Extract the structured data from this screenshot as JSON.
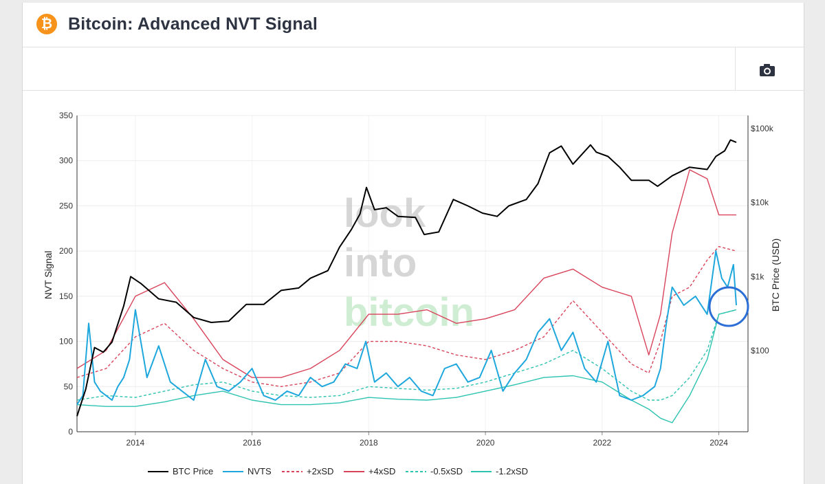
{
  "page": {
    "title": "Bitcoin: Advanced NVT Signal"
  },
  "colors": {
    "brand": "#f7931a",
    "btc_price": "#000000",
    "nvts": "#1ea7dd",
    "plus2sd": "#d9435a",
    "plus4sd": "#d9435a",
    "minus05sd": "#2cc3b0",
    "minus12sd": "#2cc3b0",
    "annotation_circle": "#2b6fd6"
  },
  "watermark": [
    "look",
    "into",
    "bitcoin"
  ],
  "chart_data": {
    "type": "line",
    "ylabel_left": "NVT Signal",
    "ylabel_right": "BTC Price (USD)",
    "xlabel": "",
    "ylim_left": [
      0,
      350
    ],
    "yticks_left": [
      0,
      50,
      100,
      150,
      200,
      250,
      300,
      350
    ],
    "right_axis_scale": "log",
    "yticks_right": [
      "$100",
      "$1k",
      "$10k",
      "$100k"
    ],
    "xticks": [
      "2014",
      "2016",
      "2018",
      "2020",
      "2022",
      "2024"
    ],
    "x_range": [
      "2013-01",
      "2024-05"
    ],
    "grid": true,
    "legend_position": "bottom",
    "series": [
      {
        "name": "BTC Price",
        "axis": "right",
        "style": "solid",
        "x": [
          2013.0,
          2013.15,
          2013.3,
          2013.45,
          2013.6,
          2013.8,
          2013.92,
          2014.1,
          2014.4,
          2014.7,
          2015.0,
          2015.3,
          2015.6,
          2015.9,
          2016.2,
          2016.5,
          2016.8,
          2017.0,
          2017.3,
          2017.5,
          2017.7,
          2017.85,
          2017.96,
          2018.1,
          2018.3,
          2018.5,
          2018.8,
          2018.95,
          2019.2,
          2019.45,
          2019.7,
          2019.95,
          2020.2,
          2020.4,
          2020.7,
          2020.9,
          2021.1,
          2021.3,
          2021.5,
          2021.8,
          2021.9,
          2022.1,
          2022.3,
          2022.5,
          2022.8,
          2022.95,
          2023.2,
          2023.5,
          2023.8,
          2023.95,
          2024.1,
          2024.2,
          2024.3
        ],
        "values": [
          13,
          30,
          110,
          95,
          130,
          400,
          1000,
          800,
          500,
          450,
          280,
          240,
          250,
          420,
          420,
          650,
          700,
          950,
          1200,
          2500,
          4300,
          7000,
          16000,
          8000,
          8500,
          6500,
          6300,
          3700,
          4000,
          11000,
          9000,
          7200,
          6500,
          9000,
          11000,
          18000,
          47000,
          58000,
          33000,
          60000,
          48000,
          42000,
          30000,
          20000,
          20000,
          16600,
          23000,
          30000,
          28000,
          42000,
          50000,
          70000,
          65000
        ]
      },
      {
        "name": "NVTS",
        "axis": "left",
        "style": "solid",
        "x": [
          2013.0,
          2013.1,
          2013.2,
          2013.3,
          2013.4,
          2013.5,
          2013.6,
          2013.7,
          2013.8,
          2013.9,
          2014.0,
          2014.2,
          2014.4,
          2014.6,
          2014.8,
          2015.0,
          2015.2,
          2015.4,
          2015.6,
          2015.8,
          2016.0,
          2016.2,
          2016.4,
          2016.6,
          2016.8,
          2017.0,
          2017.2,
          2017.4,
          2017.6,
          2017.8,
          2017.95,
          2018.1,
          2018.3,
          2018.5,
          2018.7,
          2018.9,
          2019.1,
          2019.3,
          2019.5,
          2019.7,
          2019.9,
          2020.1,
          2020.3,
          2020.5,
          2020.7,
          2020.9,
          2021.1,
          2021.3,
          2021.5,
          2021.7,
          2021.9,
          2022.1,
          2022.3,
          2022.5,
          2022.7,
          2022.9,
          2023.0,
          2023.1,
          2023.2,
          2023.4,
          2023.6,
          2023.8,
          2023.95,
          2024.05,
          2024.15,
          2024.25,
          2024.3
        ],
        "values": [
          30,
          40,
          120,
          55,
          45,
          40,
          35,
          50,
          60,
          80,
          135,
          60,
          95,
          55,
          45,
          35,
          80,
          50,
          45,
          55,
          70,
          40,
          35,
          45,
          40,
          60,
          50,
          55,
          75,
          70,
          100,
          55,
          65,
          50,
          60,
          45,
          40,
          70,
          75,
          55,
          60,
          90,
          45,
          65,
          80,
          110,
          125,
          90,
          110,
          70,
          55,
          100,
          40,
          35,
          40,
          50,
          70,
          120,
          160,
          140,
          150,
          130,
          200,
          170,
          160,
          185,
          140
        ]
      },
      {
        "name": "+2xSD",
        "axis": "left",
        "style": "dashed",
        "x": [
          2013.0,
          2013.5,
          2014.0,
          2014.5,
          2015.0,
          2015.5,
          2016.0,
          2016.5,
          2017.0,
          2017.5,
          2018.0,
          2018.5,
          2019.0,
          2019.5,
          2020.0,
          2020.5,
          2021.0,
          2021.5,
          2022.0,
          2022.5,
          2022.8,
          2023.0,
          2023.2,
          2023.5,
          2023.8,
          2024.0,
          2024.3
        ],
        "values": [
          60,
          70,
          105,
          120,
          90,
          70,
          55,
          50,
          55,
          65,
          100,
          100,
          95,
          85,
          80,
          90,
          105,
          145,
          110,
          75,
          65,
          100,
          150,
          160,
          190,
          205,
          200
        ]
      },
      {
        "name": "+4xSD",
        "axis": "left",
        "style": "solid",
        "x": [
          2013.0,
          2013.5,
          2014.0,
          2014.5,
          2015.0,
          2015.5,
          2016.0,
          2016.5,
          2017.0,
          2017.5,
          2018.0,
          2018.5,
          2019.0,
          2019.5,
          2020.0,
          2020.5,
          2021.0,
          2021.5,
          2022.0,
          2022.5,
          2022.8,
          2023.0,
          2023.2,
          2023.5,
          2023.8,
          2024.0,
          2024.3
        ],
        "values": [
          70,
          90,
          150,
          165,
          125,
          80,
          60,
          60,
          70,
          90,
          130,
          130,
          135,
          120,
          125,
          135,
          170,
          180,
          160,
          150,
          85,
          130,
          220,
          290,
          280,
          240,
          240
        ]
      },
      {
        "name": "-0.5xSD",
        "axis": "left",
        "style": "dashed",
        "x": [
          2013.0,
          2013.5,
          2014.0,
          2014.5,
          2015.0,
          2015.5,
          2016.0,
          2016.5,
          2017.0,
          2017.5,
          2018.0,
          2018.5,
          2019.0,
          2019.5,
          2020.0,
          2020.5,
          2021.0,
          2021.5,
          2022.0,
          2022.5,
          2022.8,
          2023.0,
          2023.2,
          2023.5,
          2023.8,
          2024.0,
          2024.3
        ],
        "values": [
          35,
          40,
          38,
          45,
          52,
          55,
          45,
          40,
          38,
          40,
          50,
          48,
          46,
          48,
          55,
          65,
          75,
          90,
          70,
          45,
          35,
          35,
          40,
          60,
          90,
          130,
          135
        ]
      },
      {
        "name": "-1.2xSD",
        "axis": "left",
        "style": "solid",
        "x": [
          2013.0,
          2013.5,
          2014.0,
          2014.5,
          2015.0,
          2015.5,
          2016.0,
          2016.5,
          2017.0,
          2017.5,
          2018.0,
          2018.5,
          2019.0,
          2019.5,
          2020.0,
          2020.5,
          2021.0,
          2021.5,
          2022.0,
          2022.5,
          2022.8,
          2023.0,
          2023.2,
          2023.5,
          2023.8,
          2024.0,
          2024.3
        ],
        "values": [
          30,
          28,
          28,
          33,
          40,
          45,
          35,
          30,
          30,
          32,
          38,
          36,
          35,
          38,
          45,
          52,
          60,
          62,
          55,
          35,
          25,
          15,
          10,
          40,
          80,
          130,
          135
        ]
      }
    ]
  }
}
